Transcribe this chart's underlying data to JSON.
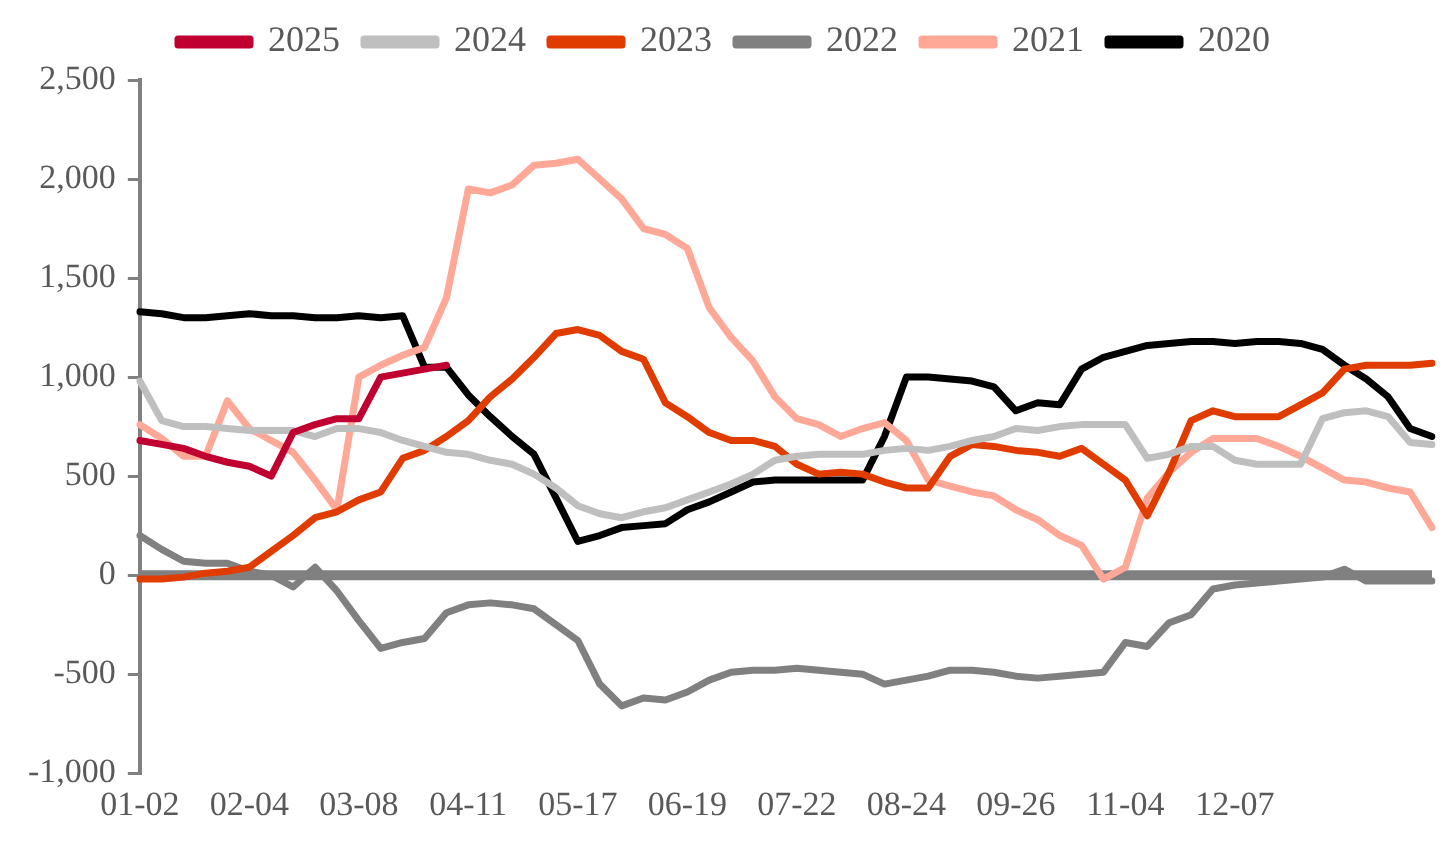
{
  "chart_data": {
    "type": "line",
    "categories": [
      "01-02",
      null,
      null,
      null,
      null,
      "02-04",
      null,
      null,
      null,
      null,
      "03-08",
      null,
      null,
      null,
      null,
      "04-11",
      null,
      null,
      null,
      null,
      "05-17",
      null,
      null,
      null,
      null,
      "06-19",
      null,
      null,
      null,
      null,
      "07-22",
      null,
      null,
      null,
      null,
      "08-24",
      null,
      null,
      null,
      null,
      "09-26",
      null,
      null,
      null,
      null,
      "11-04",
      null,
      null,
      null,
      null,
      "12-07",
      null,
      null,
      null,
      null,
      null,
      null,
      null,
      null,
      null
    ],
    "series": [
      {
        "name": "2025",
        "color": "#c00030",
        "values": [
          680,
          660,
          640,
          600,
          570,
          550,
          500,
          720,
          760,
          790,
          790,
          1000,
          1020,
          1040,
          1060,
          null,
          null,
          null,
          null,
          null,
          null,
          null,
          null,
          null,
          null,
          null,
          null,
          null,
          null,
          null,
          null,
          null,
          null,
          null,
          null,
          null,
          null,
          null,
          null,
          null,
          null,
          null,
          null,
          null,
          null,
          null,
          null,
          null,
          null,
          null,
          null,
          null,
          null,
          null,
          null,
          null,
          null,
          null,
          null,
          null
        ]
      },
      {
        "name": "2024",
        "color": "#bfbfbf",
        "values": [
          980,
          780,
          750,
          750,
          740,
          730,
          730,
          730,
          700,
          740,
          740,
          720,
          680,
          650,
          620,
          610,
          580,
          560,
          510,
          440,
          350,
          310,
          290,
          320,
          340,
          380,
          420,
          460,
          510,
          580,
          600,
          610,
          610,
          610,
          630,
          640,
          630,
          650,
          680,
          700,
          740,
          730,
          750,
          760,
          760,
          760,
          590,
          610,
          650,
          650,
          580,
          560,
          560,
          560,
          790,
          820,
          830,
          800,
          670,
          660
        ]
      },
      {
        "name": "2023",
        "color": "#e03c00",
        "values": [
          -20,
          -20,
          -10,
          10,
          20,
          40,
          120,
          200,
          290,
          320,
          380,
          420,
          590,
          630,
          700,
          780,
          900,
          990,
          1100,
          1220,
          1240,
          1210,
          1130,
          1090,
          870,
          800,
          720,
          680,
          680,
          650,
          560,
          510,
          520,
          510,
          470,
          440,
          440,
          600,
          660,
          650,
          630,
          620,
          600,
          640,
          560,
          480,
          300,
          520,
          780,
          830,
          800,
          800,
          800,
          860,
          920,
          1040,
          1060,
          1060,
          1060,
          1070
        ]
      },
      {
        "name": "2022",
        "color": "#808080",
        "values": [
          200,
          130,
          70,
          60,
          60,
          20,
          0,
          -60,
          40,
          -80,
          -230,
          -370,
          -340,
          -320,
          -190,
          -150,
          -140,
          -150,
          -170,
          -250,
          -330,
          -550,
          -660,
          -620,
          -630,
          -590,
          -530,
          -490,
          -480,
          -480,
          -470,
          -480,
          -490,
          -500,
          -550,
          -530,
          -510,
          -480,
          -480,
          -490,
          -510,
          -520,
          -510,
          -500,
          -490,
          -340,
          -360,
          -240,
          -200,
          -70,
          -50,
          -40,
          -30,
          -20,
          -10,
          30,
          -30,
          -30,
          -30,
          -30
        ]
      },
      {
        "name": "2021",
        "color": "#ffa897",
        "values": [
          760,
          690,
          600,
          600,
          880,
          740,
          680,
          620,
          480,
          330,
          1000,
          1060,
          1110,
          1150,
          1400,
          1950,
          1930,
          1970,
          2070,
          2080,
          2100,
          2000,
          1900,
          1750,
          1720,
          1650,
          1350,
          1200,
          1080,
          900,
          790,
          760,
          700,
          740,
          770,
          680,
          480,
          450,
          420,
          400,
          330,
          280,
          200,
          150,
          -20,
          40,
          390,
          520,
          620,
          690,
          690,
          690,
          650,
          600,
          540,
          480,
          470,
          440,
          420,
          240
        ]
      },
      {
        "name": "2020",
        "color": "#000000",
        "values": [
          1330,
          1320,
          1300,
          1300,
          1310,
          1320,
          1310,
          1310,
          1300,
          1300,
          1310,
          1300,
          1310,
          1050,
          1050,
          910,
          800,
          700,
          610,
          390,
          170,
          200,
          240,
          250,
          260,
          330,
          370,
          420,
          470,
          480,
          480,
          480,
          480,
          480,
          700,
          1000,
          1000,
          990,
          980,
          950,
          830,
          870,
          860,
          1040,
          1100,
          1130,
          1160,
          1170,
          1180,
          1180,
          1170,
          1180,
          1180,
          1170,
          1140,
          1060,
          990,
          900,
          740,
          700
        ]
      }
    ],
    "ylim": [
      -1000,
      2500
    ],
    "yticks": [
      {
        "value": -1000,
        "label": "-1,000"
      },
      -500,
      0,
      500,
      {
        "value": 1000,
        "label": "1,000"
      },
      {
        "value": 1500,
        "label": "1,500"
      },
      {
        "value": 2000,
        "label": "2,000"
      },
      {
        "value": 2500,
        "label": "2,500"
      }
    ],
    "ref_lines": [
      {
        "axis": "y",
        "value": 0,
        "color": "#808080"
      }
    ],
    "grid": false,
    "legend": "top",
    "marker": "none",
    "line_style": "solid"
  }
}
